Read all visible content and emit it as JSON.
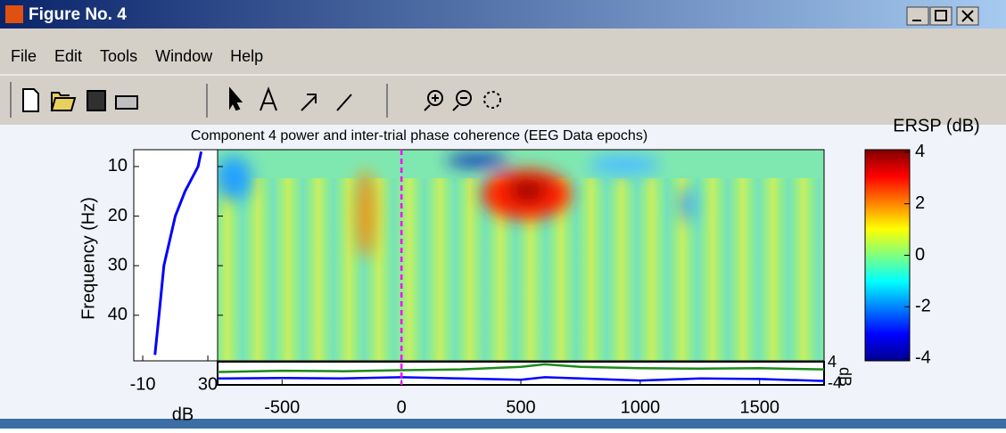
{
  "window": {
    "title": "Figure No. 4"
  },
  "menu": [
    "File",
    "Edit",
    "Tools",
    "Window",
    "Help"
  ],
  "figure": {
    "title": "Component 4 power and inter-trial phase coherence (EEG Data epochs)",
    "colorbar_title": "ERSP (dB)",
    "main": {
      "ylabel": "Frequency (Hz)",
      "xlim": [
        -770,
        1770
      ],
      "ylim": [
        6.6,
        49.2
      ],
      "xticks": [
        -500,
        0,
        500,
        1000,
        1500
      ],
      "yticks": [
        10,
        20,
        30,
        40
      ],
      "marker_x": 0,
      "marker_color": "#ff00ff"
    },
    "baseline": {
      "xlabel": "dB",
      "xlim": [
        -15.5,
        36
      ],
      "xticks": [
        -10,
        30
      ],
      "freq": [
        7,
        10,
        15,
        20,
        30,
        40,
        48
      ],
      "values": [
        25.9,
        24,
        16,
        10,
        3,
        0,
        -2.5
      ],
      "color": "#0000ff"
    },
    "colorbar": {
      "ylim": [
        -4.1,
        4.1
      ],
      "yticks": [
        -4,
        -2,
        0,
        2,
        4
      ]
    },
    "trace": {
      "ylabel": "dB",
      "ylim": [
        -4.5,
        4.5
      ],
      "yticks": [
        -4,
        4
      ],
      "x": [
        -770,
        -500,
        -250,
        0,
        250,
        500,
        600,
        750,
        1000,
        1250,
        1500,
        1770
      ],
      "series": [
        {
          "color": "#1a8a1a",
          "values": [
            0.5,
            1,
            0.8,
            1.2,
            1.5,
            2.5,
            3.5,
            2.5,
            2,
            1.8,
            2,
            1.5
          ]
        },
        {
          "color": "#0000ff",
          "values": [
            -2,
            -1.8,
            -2,
            -1.5,
            -2,
            -2.5,
            -1.5,
            -2,
            -2.8,
            -2,
            -2.2,
            -3
          ]
        }
      ]
    }
  }
}
